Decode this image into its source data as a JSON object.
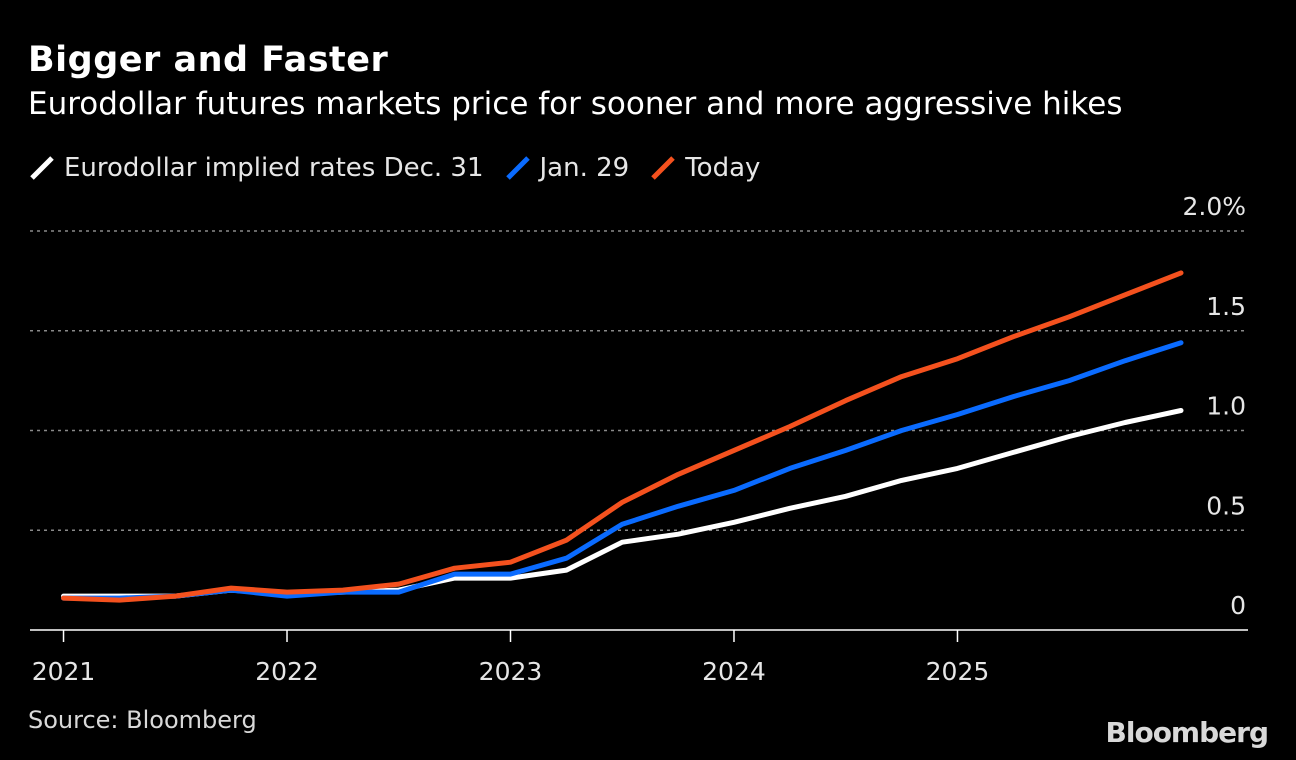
{
  "header": {
    "title": "Bigger and Faster",
    "subtitle": "Eurodollar futures markets price for sooner and more aggressive hikes"
  },
  "footer": {
    "source": "Source: Bloomberg",
    "brand": "Bloomberg"
  },
  "chart_data": {
    "type": "line",
    "title": "Bigger and Faster",
    "subtitle": "Eurodollar futures markets price for sooner and more aggressive hikes",
    "xlabel": "",
    "ylabel": "",
    "x": [
      2021.0,
      2021.25,
      2021.5,
      2021.75,
      2022.0,
      2022.25,
      2022.5,
      2022.75,
      2023.0,
      2023.25,
      2023.5,
      2023.75,
      2024.0,
      2024.25,
      2024.5,
      2024.75,
      2025.0,
      2025.25,
      2025.5,
      2025.75,
      2026.0
    ],
    "xlim": [
      2020.85,
      2026.3
    ],
    "ylim": [
      0,
      2.0
    ],
    "x_ticks": [
      2021,
      2022,
      2023,
      2024,
      2025
    ],
    "x_tick_labels": [
      "2021",
      "2022",
      "2023",
      "2024",
      "2025"
    ],
    "y_ticks": [
      0,
      0.5,
      1.0,
      1.5,
      2.0
    ],
    "y_tick_labels": [
      "0",
      "0.5",
      "1.0",
      "1.5",
      "2.0%"
    ],
    "grid": true,
    "legend_position": "top-left",
    "series": [
      {
        "name": "Eurodollar implied rates Dec. 31",
        "color": "#ffffff",
        "values": [
          0.17,
          0.17,
          0.17,
          0.2,
          0.18,
          0.19,
          0.2,
          0.26,
          0.26,
          0.3,
          0.44,
          0.48,
          0.54,
          0.61,
          0.67,
          0.75,
          0.81,
          0.89,
          0.97,
          1.04,
          1.1
        ]
      },
      {
        "name": "Jan. 29",
        "color": "#0a6bff",
        "values": [
          0.16,
          0.16,
          0.17,
          0.2,
          0.17,
          0.19,
          0.19,
          0.28,
          0.28,
          0.36,
          0.53,
          0.62,
          0.7,
          0.81,
          0.9,
          1.0,
          1.08,
          1.17,
          1.25,
          1.35,
          1.44
        ]
      },
      {
        "name": "Today",
        "color": "#f4511e",
        "values": [
          0.16,
          0.15,
          0.17,
          0.21,
          0.19,
          0.2,
          0.23,
          0.31,
          0.34,
          0.45,
          0.64,
          0.78,
          0.9,
          1.02,
          1.15,
          1.27,
          1.36,
          1.47,
          1.57,
          1.68,
          1.79
        ]
      }
    ]
  }
}
